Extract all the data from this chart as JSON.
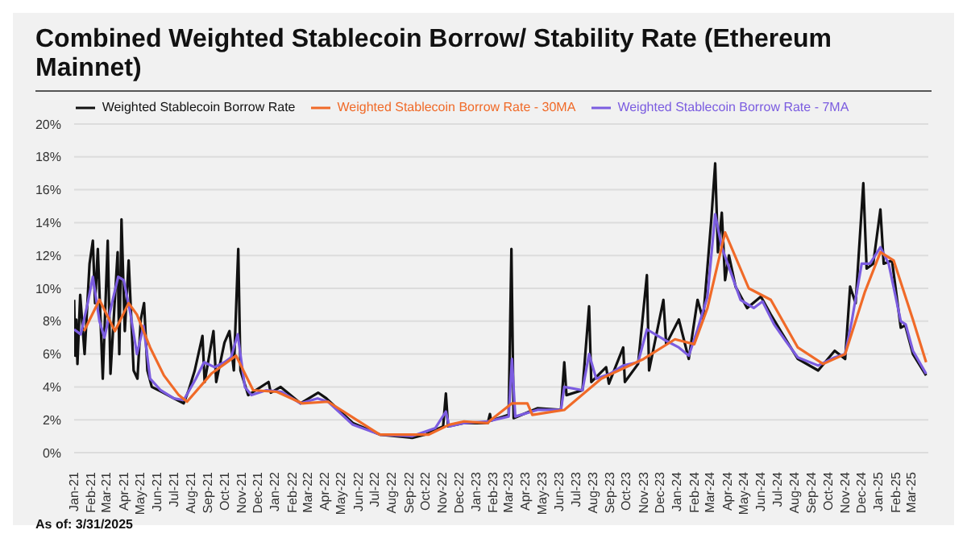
{
  "chart_data": {
    "type": "line",
    "title": "Combined Weighted Stablecoin Borrow/ Stability Rate (Ethereum Mainnet)",
    "annotations": [
      "As of: 3/31/2025"
    ],
    "legend": "top",
    "grid": "y",
    "xlim": [
      "2021-01-01",
      "2025-04-01"
    ],
    "xticks": [
      {
        "value": "2021-01-01",
        "label": "Jan-21"
      },
      {
        "value": "2021-02-01",
        "label": "Feb-21"
      },
      {
        "value": "2021-03-01",
        "label": "Mar-21"
      },
      {
        "value": "2021-04-01",
        "label": "Apr-21"
      },
      {
        "value": "2021-05-01",
        "label": "May-21"
      },
      {
        "value": "2021-06-01",
        "label": "Jun-21"
      },
      {
        "value": "2021-07-01",
        "label": "Jul-21"
      },
      {
        "value": "2021-08-01",
        "label": "Aug-21"
      },
      {
        "value": "2021-09-01",
        "label": "Sep-21"
      },
      {
        "value": "2021-10-01",
        "label": "Oct-21"
      },
      {
        "value": "2021-11-01",
        "label": "Nov-21"
      },
      {
        "value": "2021-12-01",
        "label": "Dec-21"
      },
      {
        "value": "2022-01-01",
        "label": "Jan-22"
      },
      {
        "value": "2022-02-01",
        "label": "Feb-22"
      },
      {
        "value": "2022-03-01",
        "label": "Mar-22"
      },
      {
        "value": "2022-04-01",
        "label": "Apr-22"
      },
      {
        "value": "2022-05-01",
        "label": "May-22"
      },
      {
        "value": "2022-06-01",
        "label": "Jun-22"
      },
      {
        "value": "2022-07-01",
        "label": "Jul-22"
      },
      {
        "value": "2022-08-01",
        "label": "Aug-22"
      },
      {
        "value": "2022-09-01",
        "label": "Sep-22"
      },
      {
        "value": "2022-10-01",
        "label": "Oct-22"
      },
      {
        "value": "2022-11-01",
        "label": "Nov-22"
      },
      {
        "value": "2022-12-01",
        "label": "Dec-22"
      },
      {
        "value": "2023-01-01",
        "label": "Jan-23"
      },
      {
        "value": "2023-02-01",
        "label": "Feb-23"
      },
      {
        "value": "2023-03-01",
        "label": "Mar-23"
      },
      {
        "value": "2023-04-01",
        "label": "Apr-23"
      },
      {
        "value": "2023-05-01",
        "label": "May-23"
      },
      {
        "value": "2023-06-01",
        "label": "Jun-23"
      },
      {
        "value": "2023-07-01",
        "label": "Jul-23"
      },
      {
        "value": "2023-08-01",
        "label": "Aug-23"
      },
      {
        "value": "2023-09-01",
        "label": "Sep-23"
      },
      {
        "value": "2023-10-01",
        "label": "Oct-23"
      },
      {
        "value": "2023-11-01",
        "label": "Nov-23"
      },
      {
        "value": "2023-12-01",
        "label": "Dec-23"
      },
      {
        "value": "2024-01-01",
        "label": "Jan-24"
      },
      {
        "value": "2024-02-01",
        "label": "Feb-24"
      },
      {
        "value": "2024-03-01",
        "label": "Mar-24"
      },
      {
        "value": "2024-04-01",
        "label": "Apr-24"
      },
      {
        "value": "2024-05-01",
        "label": "May-24"
      },
      {
        "value": "2024-06-01",
        "label": "Jun-24"
      },
      {
        "value": "2024-07-01",
        "label": "Jul-24"
      },
      {
        "value": "2024-08-01",
        "label": "Aug-24"
      },
      {
        "value": "2024-09-01",
        "label": "Sep-24"
      },
      {
        "value": "2024-10-01",
        "label": "Oct-24"
      },
      {
        "value": "2024-11-01",
        "label": "Nov-24"
      },
      {
        "value": "2024-12-01",
        "label": "Dec-24"
      },
      {
        "value": "2025-01-01",
        "label": "Jan-25"
      },
      {
        "value": "2025-02-01",
        "label": "Feb-25"
      },
      {
        "value": "2025-03-01",
        "label": "Mar-25"
      }
    ],
    "ylim": [
      0,
      20
    ],
    "yticks": [
      {
        "value": 0,
        "label": "0%"
      },
      {
        "value": 2,
        "label": "2%"
      },
      {
        "value": 4,
        "label": "4%"
      },
      {
        "value": 6,
        "label": "6%"
      },
      {
        "value": 8,
        "label": "8%"
      },
      {
        "value": 10,
        "label": "10%"
      },
      {
        "value": 12,
        "label": "12%"
      },
      {
        "value": 14,
        "label": "14%"
      },
      {
        "value": 16,
        "label": "16%"
      },
      {
        "value": 18,
        "label": "18%"
      },
      {
        "value": 20,
        "label": "20%"
      }
    ],
    "series": [
      {
        "name": "Weighted Stablecoin Borrow Rate",
        "color": "#111111",
        "x": [
          "2021-01-01",
          "2021-01-03",
          "2021-01-05",
          "2021-01-07",
          "2021-01-12",
          "2021-01-20",
          "2021-01-29",
          "2021-02-04",
          "2021-02-08",
          "2021-02-13",
          "2021-02-22",
          "2021-03-03",
          "2021-03-08",
          "2021-03-21",
          "2021-03-24",
          "2021-03-28",
          "2021-04-03",
          "2021-04-10",
          "2021-04-19",
          "2021-04-26",
          "2021-05-02",
          "2021-05-08",
          "2021-05-14",
          "2021-05-22",
          "2021-06-12",
          "2021-07-01",
          "2021-07-19",
          "2021-07-28",
          "2021-08-08",
          "2021-08-22",
          "2021-08-26",
          "2021-09-11",
          "2021-09-16",
          "2021-10-01",
          "2021-10-10",
          "2021-10-18",
          "2021-10-26",
          "2021-10-30",
          "2021-11-13",
          "2021-12-20",
          "2021-12-24",
          "2022-01-11",
          "2022-02-16",
          "2022-03-20",
          "2022-04-04",
          "2022-05-22",
          "2022-07-10",
          "2022-09-07",
          "2022-10-01",
          "2022-11-02",
          "2022-11-07",
          "2022-11-11",
          "2022-12-10",
          "2023-01-22",
          "2023-01-26",
          "2023-01-28",
          "2023-03-01",
          "2023-03-06",
          "2023-03-10",
          "2023-04-22",
          "2023-06-04",
          "2023-06-10",
          "2023-06-14",
          "2023-07-13",
          "2023-07-25",
          "2023-07-29",
          "2023-08-25",
          "2023-08-30",
          "2023-09-25",
          "2023-09-28",
          "2023-10-22",
          "2023-11-07",
          "2023-11-11",
          "2023-12-07",
          "2023-12-12",
          "2024-01-04",
          "2024-01-22",
          "2024-02-07",
          "2024-02-17",
          "2024-02-25",
          "2024-03-03",
          "2024-03-10",
          "2024-03-15",
          "2024-03-22",
          "2024-03-28",
          "2024-04-04",
          "2024-04-16",
          "2024-05-07",
          "2024-06-01",
          "2024-06-19",
          "2024-07-07",
          "2024-08-07",
          "2024-09-13",
          "2024-10-13",
          "2024-11-01",
          "2024-11-10",
          "2024-11-20",
          "2024-12-04",
          "2024-12-10",
          "2024-12-22",
          "2025-01-04",
          "2025-01-10",
          "2025-01-25",
          "2025-02-10",
          "2025-02-18",
          "2025-03-04",
          "2025-03-28"
        ],
        "values": [
          9.3,
          5.9,
          8.1,
          5.4,
          9.6,
          6.0,
          11.5,
          12.9,
          9.1,
          12.4,
          4.5,
          12.9,
          4.8,
          12.2,
          6.0,
          14.2,
          7.4,
          11.7,
          5.0,
          4.5,
          8.1,
          9.1,
          5.0,
          4.0,
          3.65,
          3.3,
          3.0,
          3.8,
          5.0,
          7.1,
          4.3,
          7.4,
          4.3,
          6.7,
          7.4,
          5.0,
          12.4,
          5.0,
          3.5,
          4.3,
          3.65,
          4.0,
          3.0,
          3.65,
          3.3,
          1.8,
          1.1,
          0.9,
          1.1,
          1.6,
          3.6,
          1.6,
          1.8,
          1.8,
          2.35,
          1.95,
          2.3,
          12.4,
          2.1,
          2.7,
          2.6,
          5.5,
          3.5,
          3.8,
          8.9,
          4.3,
          5.2,
          4.2,
          6.4,
          4.3,
          5.4,
          10.8,
          5.0,
          9.3,
          6.6,
          8.1,
          5.7,
          9.3,
          8.1,
          11.3,
          14.2,
          17.6,
          12.2,
          14.6,
          10.5,
          12.0,
          10.1,
          8.8,
          9.5,
          8.4,
          7.4,
          5.7,
          5.0,
          6.2,
          5.7,
          10.1,
          9.1,
          16.4,
          11.2,
          11.5,
          14.8,
          11.5,
          11.7,
          7.6,
          7.75,
          6.0,
          4.7
        ]
      },
      {
        "name": "Weighted Stablecoin Borrow Rate - 7MA",
        "color": "#7b5ce0",
        "x": [
          "2021-01-01",
          "2021-01-13",
          "2021-01-25",
          "2021-02-04",
          "2021-02-16",
          "2021-02-25",
          "2021-03-10",
          "2021-03-22",
          "2021-04-01",
          "2021-04-13",
          "2021-04-25",
          "2021-05-07",
          "2021-05-19",
          "2021-06-07",
          "2021-07-01",
          "2021-07-19",
          "2021-08-10",
          "2021-08-25",
          "2021-09-13",
          "2021-10-01",
          "2021-10-13",
          "2021-10-25",
          "2021-11-07",
          "2021-11-19",
          "2021-12-16",
          "2022-01-13",
          "2022-02-16",
          "2022-03-19",
          "2022-04-07",
          "2022-05-22",
          "2022-07-10",
          "2022-09-07",
          "2022-10-19",
          "2022-11-07",
          "2022-11-13",
          "2022-12-10",
          "2023-01-22",
          "2023-03-01",
          "2023-03-07",
          "2023-03-13",
          "2023-04-22",
          "2023-06-04",
          "2023-06-10",
          "2023-07-13",
          "2023-07-25",
          "2023-08-07",
          "2023-09-01",
          "2023-09-25",
          "2023-10-22",
          "2023-11-07",
          "2023-12-07",
          "2024-01-04",
          "2024-01-22",
          "2024-02-07",
          "2024-02-25",
          "2024-03-10",
          "2024-03-22",
          "2024-04-07",
          "2024-04-25",
          "2024-05-19",
          "2024-06-04",
          "2024-06-25",
          "2024-07-16",
          "2024-08-07",
          "2024-09-13",
          "2024-10-13",
          "2024-11-01",
          "2024-11-13",
          "2024-12-01",
          "2024-12-16",
          "2025-01-04",
          "2025-01-19",
          "2025-02-10",
          "2025-02-19",
          "2025-03-04",
          "2025-03-28"
        ],
        "values": [
          7.5,
          7.2,
          9.0,
          10.7,
          8.0,
          7.0,
          9.0,
          10.7,
          10.5,
          8.5,
          6.0,
          7.7,
          4.5,
          3.8,
          3.3,
          3.2,
          4.5,
          5.5,
          5.2,
          5.5,
          5.8,
          7.2,
          4.0,
          3.5,
          3.8,
          3.7,
          3.0,
          3.3,
          3.1,
          1.7,
          1.1,
          1.0,
          1.5,
          2.5,
          1.6,
          1.8,
          1.9,
          2.2,
          5.7,
          2.2,
          2.6,
          2.6,
          4.0,
          3.8,
          6.0,
          4.5,
          4.8,
          5.3,
          5.5,
          7.5,
          6.9,
          6.4,
          5.9,
          7.5,
          9.5,
          14.5,
          12.5,
          11.0,
          9.3,
          8.8,
          9.2,
          7.8,
          6.8,
          5.8,
          5.3,
          5.8,
          6.0,
          8.0,
          11.5,
          11.5,
          12.5,
          11.5,
          8.0,
          7.8,
          6.2,
          4.8
        ]
      },
      {
        "name": "Weighted Stablecoin Borrow Rate - 30MA",
        "color": "#f06a28",
        "x": [
          "2021-01-19",
          "2021-02-16",
          "2021-03-16",
          "2021-04-10",
          "2021-04-25",
          "2021-05-19",
          "2021-06-13",
          "2021-07-10",
          "2021-07-25",
          "2021-09-07",
          "2021-10-22",
          "2021-11-22",
          "2022-01-04",
          "2022-02-19",
          "2022-04-07",
          "2022-07-10",
          "2022-10-07",
          "2022-11-13",
          "2022-12-10",
          "2023-01-22",
          "2023-01-28",
          "2023-03-07",
          "2023-04-04",
          "2023-04-13",
          "2023-06-10",
          "2023-08-16",
          "2023-11-01",
          "2023-12-28",
          "2024-02-01",
          "2024-02-25",
          "2024-03-28",
          "2024-05-10",
          "2024-06-19",
          "2024-08-07",
          "2024-09-22",
          "2024-11-01",
          "2024-12-07",
          "2025-01-04",
          "2025-01-28",
          "2025-03-04",
          "2025-03-28"
        ],
        "values": [
          7.4,
          9.3,
          7.4,
          9.1,
          8.4,
          6.4,
          4.7,
          3.5,
          3.1,
          4.8,
          5.9,
          3.8,
          3.7,
          3.0,
          3.1,
          1.1,
          1.1,
          1.7,
          1.9,
          1.8,
          2.0,
          3.0,
          3.0,
          2.3,
          2.6,
          4.5,
          5.7,
          6.9,
          6.6,
          8.8,
          13.4,
          10.0,
          9.3,
          6.4,
          5.4,
          6.0,
          9.8,
          12.2,
          11.7,
          8.1,
          5.5
        ]
      }
    ]
  }
}
